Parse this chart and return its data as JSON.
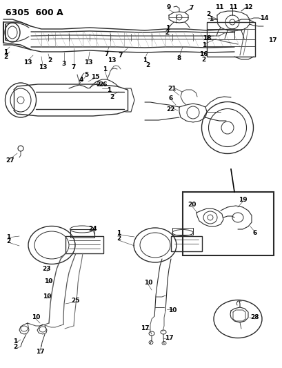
{
  "title": "6305  600 A",
  "bg": "#ffffff",
  "lc": "#2a2a2a",
  "tc": "#000000",
  "fig_w": 4.1,
  "fig_h": 5.33,
  "dpi": 100
}
